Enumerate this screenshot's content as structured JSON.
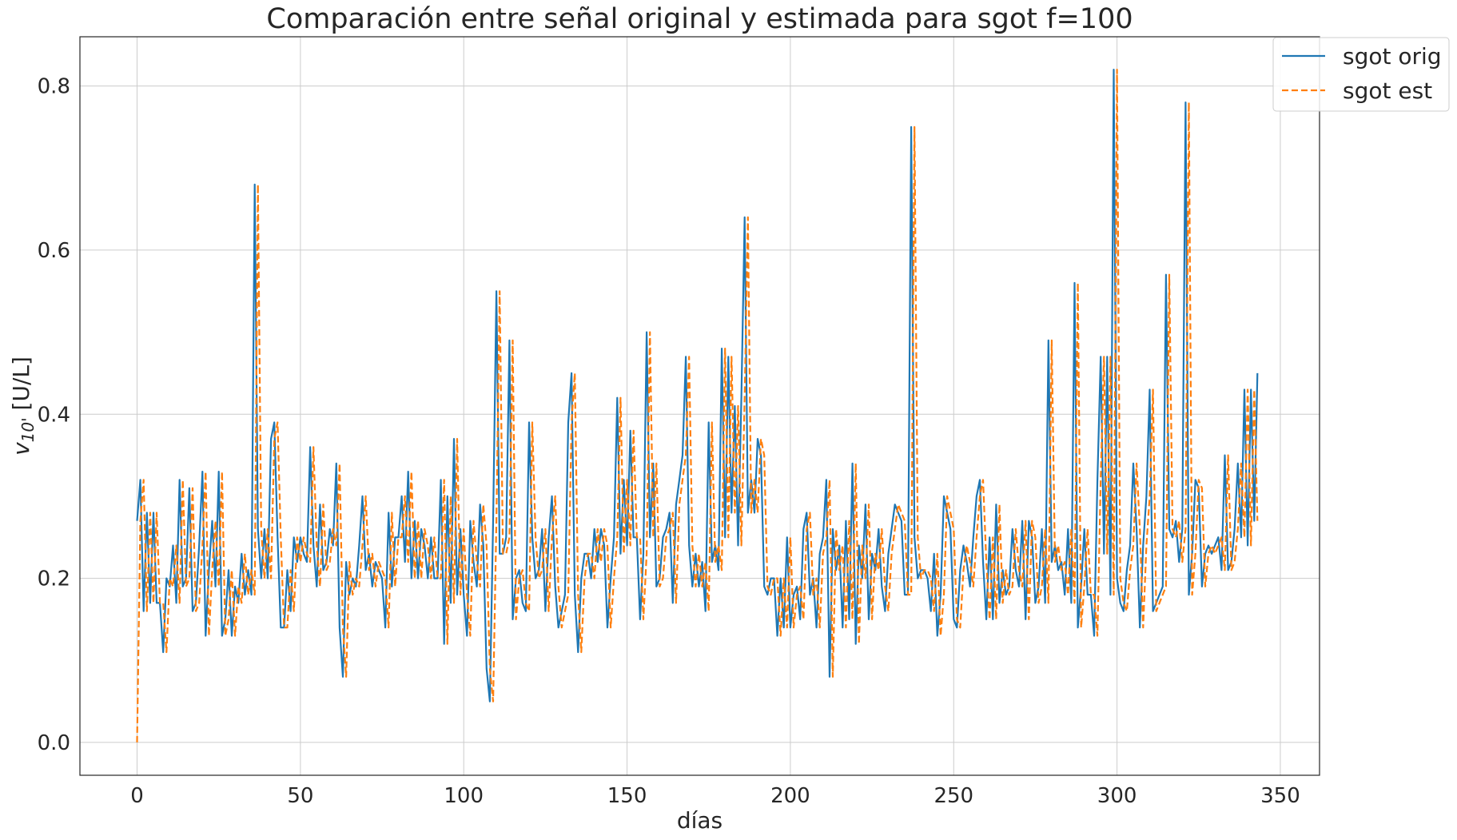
{
  "chart_data": {
    "type": "line",
    "title": "Comparación entre señal original y estimada para sgot f=100",
    "xlabel": "días",
    "ylabel_main": "v",
    "ylabel_sub": "10'",
    "ylabel_unit": " [U/L]",
    "xlim": [
      -17.5,
      362
    ],
    "ylim": [
      -0.04,
      0.86
    ],
    "xticks": [
      0,
      50,
      100,
      150,
      200,
      250,
      300,
      350
    ],
    "xtick_labels": [
      "0",
      "50",
      "100",
      "150",
      "200",
      "250",
      "300",
      "350"
    ],
    "yticks": [
      0.0,
      0.2,
      0.4,
      0.6,
      0.8
    ],
    "ytick_labels": [
      "0.0",
      "0.2",
      "0.4",
      "0.6",
      "0.8"
    ],
    "grid": true,
    "legend_position": "top-right",
    "series": [
      {
        "name": "sgot orig",
        "color": "#1f77b4",
        "style": "solid",
        "values": [
          0.27,
          0.32,
          0.16,
          0.28,
          0.17,
          0.28,
          0.17,
          0.17,
          0.11,
          0.2,
          0.19,
          0.24,
          0.17,
          0.32,
          0.19,
          0.2,
          0.31,
          0.16,
          0.17,
          0.24,
          0.33,
          0.13,
          0.21,
          0.27,
          0.19,
          0.33,
          0.13,
          0.15,
          0.21,
          0.13,
          0.19,
          0.17,
          0.23,
          0.18,
          0.21,
          0.18,
          0.68,
          0.26,
          0.2,
          0.26,
          0.2,
          0.37,
          0.39,
          0.25,
          0.14,
          0.14,
          0.21,
          0.16,
          0.25,
          0.22,
          0.25,
          0.23,
          0.22,
          0.36,
          0.24,
          0.19,
          0.29,
          0.21,
          0.22,
          0.26,
          0.24,
          0.34,
          0.14,
          0.08,
          0.22,
          0.18,
          0.2,
          0.19,
          0.24,
          0.3,
          0.21,
          0.23,
          0.19,
          0.22,
          0.21,
          0.2,
          0.14,
          0.28,
          0.19,
          0.25,
          0.25,
          0.3,
          0.22,
          0.33,
          0.2,
          0.27,
          0.2,
          0.26,
          0.24,
          0.2,
          0.25,
          0.2,
          0.2,
          0.32,
          0.12,
          0.3,
          0.17,
          0.37,
          0.18,
          0.26,
          0.18,
          0.13,
          0.27,
          0.22,
          0.19,
          0.29,
          0.24,
          0.09,
          0.05,
          0.27,
          0.55,
          0.23,
          0.23,
          0.25,
          0.49,
          0.15,
          0.2,
          0.21,
          0.17,
          0.16,
          0.39,
          0.25,
          0.2,
          0.21,
          0.26,
          0.16,
          0.25,
          0.3,
          0.19,
          0.14,
          0.16,
          0.18,
          0.39,
          0.45,
          0.18,
          0.11,
          0.2,
          0.23,
          0.23,
          0.2,
          0.26,
          0.22,
          0.26,
          0.24,
          0.14,
          0.2,
          0.25,
          0.42,
          0.23,
          0.32,
          0.24,
          0.38,
          0.25,
          0.25,
          0.15,
          0.23,
          0.5,
          0.25,
          0.34,
          0.19,
          0.2,
          0.25,
          0.26,
          0.28,
          0.17,
          0.29,
          0.32,
          0.35,
          0.47,
          0.24,
          0.19,
          0.23,
          0.19,
          0.22,
          0.16,
          0.39,
          0.22,
          0.24,
          0.21,
          0.48,
          0.25,
          0.47,
          0.28,
          0.41,
          0.24,
          0.42,
          0.64,
          0.28,
          0.32,
          0.28,
          0.37,
          0.35,
          0.19,
          0.18,
          0.2,
          0.2,
          0.13,
          0.2,
          0.14,
          0.25,
          0.14,
          0.18,
          0.19,
          0.15,
          0.26,
          0.28,
          0.18,
          0.2,
          0.14,
          0.23,
          0.25,
          0.32,
          0.08,
          0.26,
          0.21,
          0.24,
          0.14,
          0.27,
          0.15,
          0.34,
          0.12,
          0.24,
          0.2,
          0.29,
          0.15,
          0.23,
          0.21,
          0.26,
          0.19,
          0.16,
          0.23,
          0.26,
          0.29,
          0.28,
          0.27,
          0.18,
          0.18,
          0.75,
          0.25,
          0.2,
          0.21,
          0.21,
          0.2,
          0.16,
          0.23,
          0.13,
          0.18,
          0.3,
          0.28,
          0.26,
          0.15,
          0.14,
          0.21,
          0.24,
          0.22,
          0.19,
          0.25,
          0.3,
          0.32,
          0.22,
          0.15,
          0.25,
          0.15,
          0.29,
          0.17,
          0.21,
          0.18,
          0.19,
          0.26,
          0.21,
          0.19,
          0.27,
          0.15,
          0.27,
          0.25,
          0.17,
          0.19,
          0.26,
          0.17,
          0.49,
          0.22,
          0.24,
          0.21,
          0.22,
          0.18,
          0.26,
          0.17,
          0.56,
          0.14,
          0.19,
          0.26,
          0.18,
          0.18,
          0.13,
          0.32,
          0.47,
          0.23,
          0.47,
          0.18,
          0.82,
          0.2,
          0.17,
          0.16,
          0.21,
          0.24,
          0.34,
          0.26,
          0.14,
          0.24,
          0.3,
          0.43,
          0.16,
          0.17,
          0.18,
          0.19,
          0.57,
          0.26,
          0.25,
          0.27,
          0.22,
          0.26,
          0.78,
          0.18,
          0.23,
          0.32,
          0.31,
          0.19,
          0.23,
          0.24,
          0.23,
          0.24,
          0.25,
          0.21,
          0.35,
          0.21,
          0.22,
          0.26,
          0.34,
          0.25,
          0.43,
          0.24,
          0.43,
          0.27,
          0.45
        ]
      },
      {
        "name": "sgot est",
        "color": "#ff7f0e",
        "style": "dashed",
        "shift": 1,
        "first_value": 0.0
      }
    ]
  }
}
